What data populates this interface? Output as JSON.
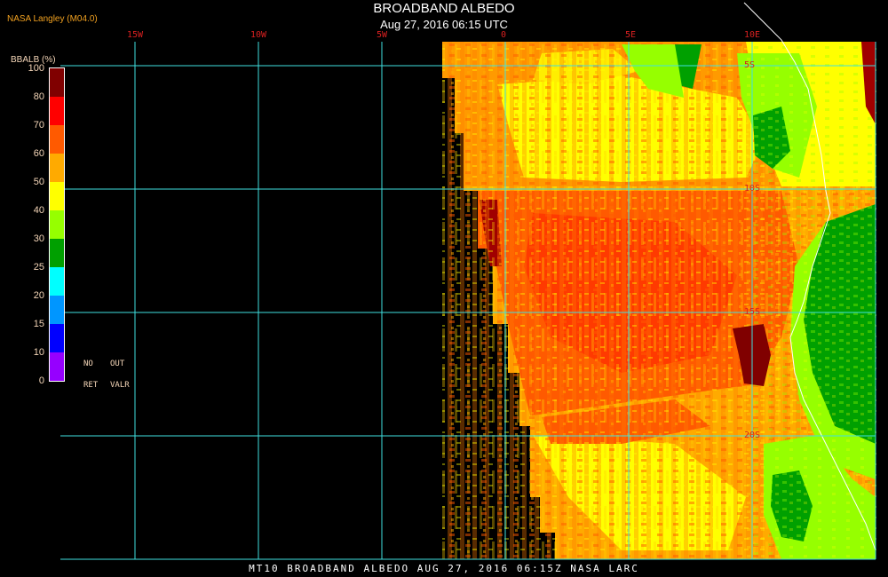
{
  "header": {
    "title": "BROADBAND ALBEDO",
    "subtitle": "Aug 27, 2016 06:15 UTC",
    "source": "NASA Langley (M04.0)"
  },
  "footer": {
    "text": "MT10  BROADBAND ALBEDO  AUG 27, 2016 06:15Z  NASA LARC"
  },
  "colorbar": {
    "title": "BBALB (%)",
    "levels": [
      "100",
      "80",
      "70",
      "60",
      "50",
      "40",
      "30",
      "25",
      "20",
      "15",
      "10",
      "0"
    ],
    "colors": [
      "#800000",
      "#ff0000",
      "#ff5a00",
      "#ffaa00",
      "#ffff00",
      "#96ff00",
      "#00a000",
      "#00ffff",
      "#0096ff",
      "#0000ff",
      "#9600ff"
    ],
    "notes": {
      "no": "NO",
      "out": "OUT",
      "ret": "RET",
      "valr": "VALR"
    }
  },
  "grid": {
    "lon_labels": [
      "15W",
      "10W",
      "5W",
      "0",
      "5E",
      "10E"
    ],
    "lat_labels": [
      "5S",
      "10S",
      "15S",
      "20S"
    ],
    "line_color": "#40e0e0",
    "label_color": "#d82020"
  },
  "legend_palette": {
    "background": "#000000",
    "dark_red": "#800000",
    "red": "#ff0000",
    "orange_red": "#ff5a00",
    "orange": "#ffaa00",
    "yellow": "#ffff00",
    "light_green": "#96ff00",
    "green": "#00a000"
  }
}
